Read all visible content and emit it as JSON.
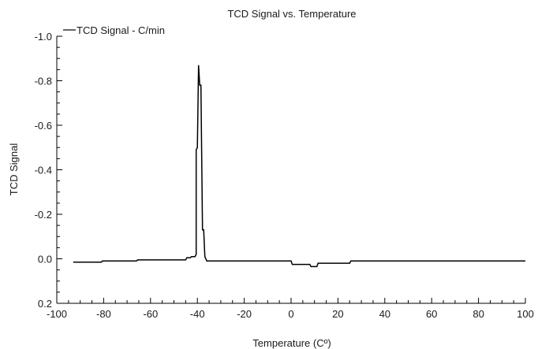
{
  "chart_data": {
    "type": "line",
    "title": "TCD Signal vs. Temperature",
    "xlabel": "Temperature (Cº)",
    "ylabel": "TCD Signal",
    "xlim": [
      -100,
      100
    ],
    "ylim": [
      0.2,
      -1.0
    ],
    "y_inverted": true,
    "grid": false,
    "legend_position": "top-left",
    "x_ticks": [
      -100,
      -80,
      -60,
      -40,
      -20,
      0,
      20,
      40,
      60,
      80,
      100
    ],
    "x_tick_labels": [
      "-100",
      "-80",
      "-60",
      "-40",
      "-20",
      "0",
      "20",
      "40",
      "60",
      "80",
      "100"
    ],
    "y_ticks": [
      -1.0,
      -0.8,
      -0.6,
      -0.4,
      -0.2,
      0.0,
      0.2
    ],
    "y_tick_labels": [
      "-1.0",
      "-0.8",
      "-0.6",
      "-0.4",
      "-0.2",
      "0.0",
      "0.2"
    ],
    "series": [
      {
        "name": "TCD Signal - C/min",
        "color": "#000000",
        "x": [
          -93,
          -81,
          -80.5,
          -66,
          -65.5,
          -45,
          -44.5,
          -43,
          -42.5,
          -41,
          -40.5,
          -40.5,
          -40,
          -39.5,
          -39,
          -38.5,
          -37.8,
          -37.3,
          -36.8,
          -36,
          -30,
          0,
          0.5,
          8,
          8.5,
          11,
          11.5,
          25,
          25.5,
          100
        ],
        "y": [
          0.015,
          0.015,
          0.01,
          0.01,
          0.005,
          0.005,
          -0.005,
          -0.005,
          -0.01,
          -0.01,
          -0.02,
          -0.49,
          -0.5,
          -0.87,
          -0.78,
          -0.78,
          -0.13,
          -0.13,
          -0.01,
          0.01,
          0.01,
          0.01,
          0.025,
          0.025,
          0.035,
          0.035,
          0.02,
          0.02,
          0.01,
          0.01
        ]
      }
    ]
  }
}
